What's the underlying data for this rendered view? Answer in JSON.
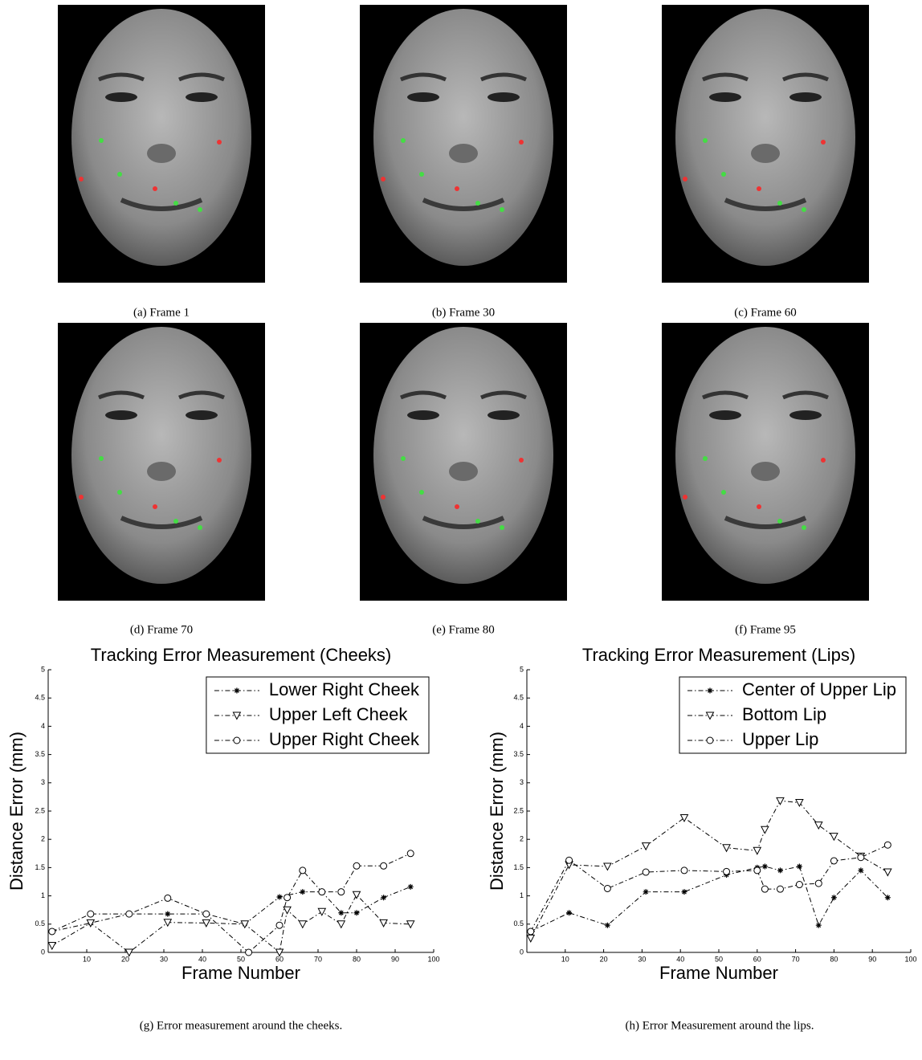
{
  "image_captions": [
    "(a) Frame 1",
    "(b) Frame 30",
    "(c) Frame 60",
    "(d) Frame 70",
    "(e) Frame 80",
    "(f) Frame 95"
  ],
  "chart_data": [
    {
      "type": "line",
      "title": "Tracking Error Measurement (Cheeks)",
      "xlabel": "Frame Number",
      "ylabel": "Distance Error (mm)",
      "xlim": [
        0,
        100
      ],
      "xticks": [
        10,
        20,
        30,
        40,
        50,
        60,
        70,
        80,
        90,
        100
      ],
      "ylim": [
        0,
        5
      ],
      "yticks": [
        0,
        0.5,
        1,
        1.5,
        2,
        2.5,
        3,
        3.5,
        4,
        4.5,
        5
      ],
      "legend": "upper right",
      "series": [
        {
          "name": "Lower Right Cheek",
          "color": "#000000",
          "marker": "asterisk",
          "x": [
            1,
            11,
            21,
            31,
            41,
            51,
            60,
            66,
            71,
            76,
            80,
            87,
            94
          ],
          "values": [
            0.37,
            0.52,
            0.68,
            0.68,
            0.68,
            0.5,
            0.98,
            1.07,
            1.07,
            0.7,
            0.7,
            0.97,
            1.16
          ]
        },
        {
          "name": "Upper Left Cheek",
          "color": "#000000",
          "marker": "triangle-down",
          "x": [
            1,
            11,
            21,
            31,
            41,
            51,
            60,
            62,
            66,
            71,
            76,
            80,
            87,
            94
          ],
          "values": [
            0.12,
            0.52,
            0,
            0.53,
            0.52,
            0.5,
            0,
            0.75,
            0.5,
            0.72,
            0.5,
            1.02,
            0.52,
            0.5
          ]
        },
        {
          "name": "Upper Right Cheek",
          "color": "#000000",
          "marker": "circle",
          "x": [
            1,
            11,
            21,
            31,
            41,
            52,
            60,
            62,
            66,
            71,
            76,
            80,
            87,
            94
          ],
          "values": [
            0.37,
            0.68,
            0.68,
            0.96,
            0.68,
            0,
            0.48,
            0.97,
            1.45,
            1.07,
            1.07,
            1.53,
            1.53,
            1.75
          ]
        }
      ]
    },
    {
      "type": "line",
      "title": "Tracking Error Measurement (Lips)",
      "xlabel": "Frame Number",
      "ylabel": "Distance Error (mm)",
      "xlim": [
        0,
        100
      ],
      "xticks": [
        10,
        20,
        30,
        40,
        50,
        60,
        70,
        80,
        90,
        100
      ],
      "ylim": [
        0,
        5
      ],
      "yticks": [
        0,
        0.5,
        1,
        1.5,
        2,
        2.5,
        3,
        3.5,
        4,
        4.5,
        5
      ],
      "legend": "upper right",
      "series": [
        {
          "name": "Center of Upper Lip",
          "color": "#000000",
          "marker": "asterisk",
          "x": [
            1,
            11,
            21,
            31,
            41,
            52,
            60,
            62,
            66,
            71,
            76,
            80,
            87,
            94
          ],
          "values": [
            0.37,
            0.7,
            0.48,
            1.07,
            1.07,
            1.37,
            1.5,
            1.52,
            1.45,
            1.52,
            0.48,
            0.97,
            1.45,
            0.97
          ]
        },
        {
          "name": "Bottom Lip",
          "color": "#000000",
          "marker": "triangle-down",
          "x": [
            1,
            11,
            21,
            31,
            41,
            52,
            60,
            62,
            66,
            71,
            76,
            80,
            87,
            94
          ],
          "values": [
            0.25,
            1.55,
            1.52,
            1.88,
            2.38,
            1.85,
            1.8,
            2.17,
            2.68,
            2.65,
            2.25,
            2.05,
            1.7,
            1.42
          ]
        },
        {
          "name": "Upper Lip",
          "color": "#000000",
          "marker": "circle",
          "x": [
            1,
            11,
            21,
            31,
            41,
            52,
            60,
            62,
            66,
            71,
            76,
            80,
            87,
            94
          ],
          "values": [
            0.37,
            1.63,
            1.13,
            1.42,
            1.45,
            1.43,
            1.45,
            1.12,
            1.12,
            1.2,
            1.22,
            1.62,
            1.68,
            1.9
          ]
        }
      ]
    }
  ],
  "chart_captions": [
    "(g) Error measurement around the cheeks.",
    "(h) Error Measurement around the lips."
  ]
}
